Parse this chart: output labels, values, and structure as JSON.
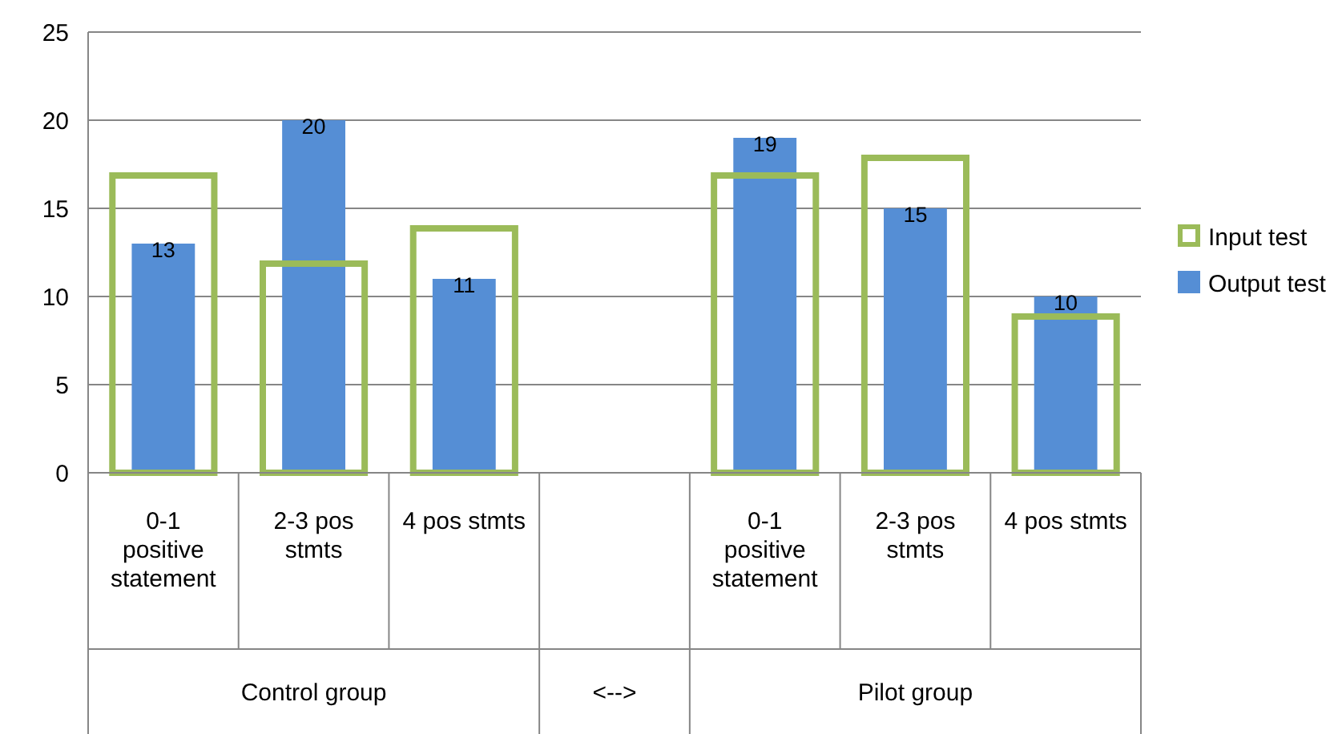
{
  "chart_data": {
    "type": "bar",
    "categories": [
      "0-1 positive statement",
      "2-3 pos stmts",
      "4 pos stmts",
      null,
      "0-1 positive statement",
      "2-3 pos stmts",
      "4 pos stmts"
    ],
    "series": [
      {
        "name": "Input test",
        "color": "#9bbb59",
        "values": [
          17,
          12,
          14,
          null,
          17,
          18,
          9
        ]
      },
      {
        "name": "Output test",
        "color": "#558ed5",
        "values": [
          13,
          20,
          11,
          null,
          19,
          15,
          10
        ],
        "value_labels": [
          "13",
          "20",
          "11",
          null,
          "19",
          "15",
          "10"
        ]
      }
    ],
    "ylim": [
      0,
      25
    ],
    "yticks": [
      0,
      5,
      10,
      15,
      20,
      25
    ],
    "grid": "y",
    "legend": "right",
    "annotations": [
      "Control group",
      "<-->",
      "Pilot group"
    ]
  }
}
